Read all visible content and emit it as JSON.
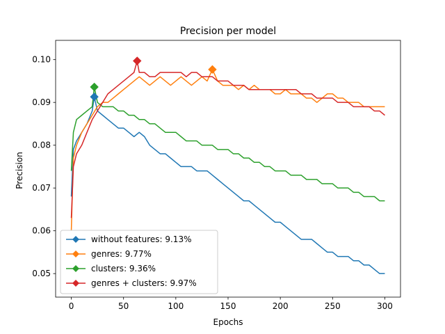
{
  "chart_data": {
    "type": "line",
    "title": "Precision per model",
    "xlabel": "Epochs",
    "ylabel": "Precision",
    "xlim": [
      -15,
      315
    ],
    "ylim": [
      0.0445,
      0.1045
    ],
    "xticks": [
      0,
      50,
      100,
      150,
      200,
      250,
      300
    ],
    "yticks": [
      0.05,
      0.06,
      0.07,
      0.08,
      0.09,
      0.1
    ],
    "ytick_labels": [
      "0.05",
      "0.06",
      "0.07",
      "0.08",
      "0.09",
      "0.10"
    ],
    "grid": false,
    "legend_position": "lower-left",
    "series": [
      {
        "name": "without features: 9.13%",
        "color": "#1f77b4",
        "points": [
          [
            0,
            0.068
          ],
          [
            2,
            0.079
          ],
          [
            5,
            0.081
          ],
          [
            10,
            0.083
          ],
          [
            15,
            0.085
          ],
          [
            20,
            0.088
          ],
          [
            22,
            0.0913
          ],
          [
            25,
            0.088
          ],
          [
            30,
            0.087
          ],
          [
            35,
            0.086
          ],
          [
            40,
            0.085
          ],
          [
            45,
            0.084
          ],
          [
            50,
            0.084
          ],
          [
            55,
            0.083
          ],
          [
            60,
            0.082
          ],
          [
            65,
            0.083
          ],
          [
            70,
            0.082
          ],
          [
            75,
            0.08
          ],
          [
            80,
            0.079
          ],
          [
            85,
            0.078
          ],
          [
            90,
            0.078
          ],
          [
            95,
            0.077
          ],
          [
            100,
            0.076
          ],
          [
            105,
            0.075
          ],
          [
            110,
            0.075
          ],
          [
            115,
            0.075
          ],
          [
            120,
            0.074
          ],
          [
            125,
            0.074
          ],
          [
            130,
            0.074
          ],
          [
            135,
            0.073
          ],
          [
            140,
            0.072
          ],
          [
            145,
            0.071
          ],
          [
            150,
            0.07
          ],
          [
            155,
            0.069
          ],
          [
            160,
            0.068
          ],
          [
            165,
            0.067
          ],
          [
            170,
            0.067
          ],
          [
            175,
            0.066
          ],
          [
            180,
            0.065
          ],
          [
            185,
            0.064
          ],
          [
            190,
            0.063
          ],
          [
            195,
            0.062
          ],
          [
            200,
            0.062
          ],
          [
            205,
            0.061
          ],
          [
            210,
            0.06
          ],
          [
            215,
            0.059
          ],
          [
            220,
            0.058
          ],
          [
            225,
            0.058
          ],
          [
            230,
            0.058
          ],
          [
            235,
            0.057
          ],
          [
            240,
            0.056
          ],
          [
            245,
            0.055
          ],
          [
            250,
            0.055
          ],
          [
            255,
            0.054
          ],
          [
            260,
            0.054
          ],
          [
            265,
            0.054
          ],
          [
            270,
            0.053
          ],
          [
            275,
            0.053
          ],
          [
            280,
            0.052
          ],
          [
            285,
            0.052
          ],
          [
            290,
            0.051
          ],
          [
            295,
            0.05
          ],
          [
            300,
            0.05
          ]
        ]
      },
      {
        "name": "genres: 9.77%",
        "color": "#ff7f0e",
        "points": [
          [
            0,
            0.06
          ],
          [
            2,
            0.077
          ],
          [
            5,
            0.08
          ],
          [
            10,
            0.083
          ],
          [
            15,
            0.085
          ],
          [
            20,
            0.087
          ],
          [
            25,
            0.089
          ],
          [
            30,
            0.09
          ],
          [
            35,
            0.09
          ],
          [
            40,
            0.091
          ],
          [
            45,
            0.092
          ],
          [
            50,
            0.093
          ],
          [
            55,
            0.094
          ],
          [
            60,
            0.095
          ],
          [
            65,
            0.096
          ],
          [
            70,
            0.095
          ],
          [
            75,
            0.094
          ],
          [
            80,
            0.095
          ],
          [
            85,
            0.096
          ],
          [
            90,
            0.095
          ],
          [
            95,
            0.094
          ],
          [
            100,
            0.095
          ],
          [
            105,
            0.096
          ],
          [
            110,
            0.095
          ],
          [
            115,
            0.094
          ],
          [
            120,
            0.095
          ],
          [
            125,
            0.096
          ],
          [
            130,
            0.095
          ],
          [
            135,
            0.0977
          ],
          [
            140,
            0.095
          ],
          [
            145,
            0.094
          ],
          [
            150,
            0.094
          ],
          [
            155,
            0.094
          ],
          [
            160,
            0.093
          ],
          [
            165,
            0.094
          ],
          [
            170,
            0.093
          ],
          [
            175,
            0.094
          ],
          [
            180,
            0.093
          ],
          [
            185,
            0.093
          ],
          [
            190,
            0.093
          ],
          [
            195,
            0.092
          ],
          [
            200,
            0.092
          ],
          [
            205,
            0.093
          ],
          [
            210,
            0.092
          ],
          [
            215,
            0.092
          ],
          [
            220,
            0.092
          ],
          [
            225,
            0.091
          ],
          [
            230,
            0.091
          ],
          [
            235,
            0.09
          ],
          [
            240,
            0.091
          ],
          [
            245,
            0.092
          ],
          [
            250,
            0.092
          ],
          [
            255,
            0.091
          ],
          [
            260,
            0.091
          ],
          [
            265,
            0.09
          ],
          [
            270,
            0.09
          ],
          [
            275,
            0.09
          ],
          [
            280,
            0.089
          ],
          [
            285,
            0.089
          ],
          [
            290,
            0.089
          ],
          [
            295,
            0.089
          ],
          [
            300,
            0.089
          ]
        ]
      },
      {
        "name": "clusters: 9.36%",
        "color": "#2ca02c",
        "points": [
          [
            0,
            0.074
          ],
          [
            2,
            0.083
          ],
          [
            5,
            0.086
          ],
          [
            10,
            0.087
          ],
          [
            15,
            0.088
          ],
          [
            20,
            0.089
          ],
          [
            22,
            0.0936
          ],
          [
            25,
            0.09
          ],
          [
            30,
            0.089
          ],
          [
            35,
            0.089
          ],
          [
            40,
            0.089
          ],
          [
            45,
            0.088
          ],
          [
            50,
            0.088
          ],
          [
            55,
            0.087
          ],
          [
            60,
            0.087
          ],
          [
            65,
            0.086
          ],
          [
            70,
            0.086
          ],
          [
            75,
            0.085
          ],
          [
            80,
            0.085
          ],
          [
            85,
            0.084
          ],
          [
            90,
            0.083
          ],
          [
            95,
            0.083
          ],
          [
            100,
            0.083
          ],
          [
            105,
            0.082
          ],
          [
            110,
            0.081
          ],
          [
            115,
            0.081
          ],
          [
            120,
            0.081
          ],
          [
            125,
            0.08
          ],
          [
            130,
            0.08
          ],
          [
            135,
            0.08
          ],
          [
            140,
            0.079
          ],
          [
            145,
            0.079
          ],
          [
            150,
            0.079
          ],
          [
            155,
            0.078
          ],
          [
            160,
            0.078
          ],
          [
            165,
            0.077
          ],
          [
            170,
            0.077
          ],
          [
            175,
            0.076
          ],
          [
            180,
            0.076
          ],
          [
            185,
            0.075
          ],
          [
            190,
            0.075
          ],
          [
            195,
            0.074
          ],
          [
            200,
            0.074
          ],
          [
            205,
            0.074
          ],
          [
            210,
            0.073
          ],
          [
            215,
            0.073
          ],
          [
            220,
            0.073
          ],
          [
            225,
            0.072
          ],
          [
            230,
            0.072
          ],
          [
            235,
            0.072
          ],
          [
            240,
            0.071
          ],
          [
            245,
            0.071
          ],
          [
            250,
            0.071
          ],
          [
            255,
            0.07
          ],
          [
            260,
            0.07
          ],
          [
            265,
            0.07
          ],
          [
            270,
            0.069
          ],
          [
            275,
            0.069
          ],
          [
            280,
            0.068
          ],
          [
            285,
            0.068
          ],
          [
            290,
            0.068
          ],
          [
            295,
            0.067
          ],
          [
            300,
            0.067
          ]
        ]
      },
      {
        "name": "genres + clusters: 9.97%",
        "color": "#d62728",
        "points": [
          [
            0,
            0.063
          ],
          [
            2,
            0.075
          ],
          [
            5,
            0.078
          ],
          [
            10,
            0.08
          ],
          [
            15,
            0.083
          ],
          [
            20,
            0.086
          ],
          [
            25,
            0.088
          ],
          [
            30,
            0.09
          ],
          [
            35,
            0.092
          ],
          [
            40,
            0.093
          ],
          [
            45,
            0.094
          ],
          [
            50,
            0.095
          ],
          [
            55,
            0.096
          ],
          [
            60,
            0.097
          ],
          [
            63,
            0.0997
          ],
          [
            65,
            0.097
          ],
          [
            70,
            0.097
          ],
          [
            75,
            0.096
          ],
          [
            80,
            0.096
          ],
          [
            85,
            0.097
          ],
          [
            90,
            0.097
          ],
          [
            95,
            0.097
          ],
          [
            100,
            0.097
          ],
          [
            105,
            0.097
          ],
          [
            110,
            0.096
          ],
          [
            115,
            0.097
          ],
          [
            120,
            0.097
          ],
          [
            125,
            0.096
          ],
          [
            130,
            0.096
          ],
          [
            135,
            0.096
          ],
          [
            140,
            0.095
          ],
          [
            145,
            0.095
          ],
          [
            150,
            0.095
          ],
          [
            155,
            0.094
          ],
          [
            160,
            0.094
          ],
          [
            165,
            0.094
          ],
          [
            170,
            0.093
          ],
          [
            175,
            0.093
          ],
          [
            180,
            0.093
          ],
          [
            185,
            0.093
          ],
          [
            190,
            0.093
          ],
          [
            195,
            0.093
          ],
          [
            200,
            0.093
          ],
          [
            205,
            0.093
          ],
          [
            210,
            0.093
          ],
          [
            215,
            0.093
          ],
          [
            220,
            0.092
          ],
          [
            225,
            0.092
          ],
          [
            230,
            0.092
          ],
          [
            235,
            0.091
          ],
          [
            240,
            0.091
          ],
          [
            245,
            0.091
          ],
          [
            250,
            0.091
          ],
          [
            255,
            0.09
          ],
          [
            260,
            0.09
          ],
          [
            265,
            0.09
          ],
          [
            270,
            0.089
          ],
          [
            275,
            0.089
          ],
          [
            280,
            0.089
          ],
          [
            285,
            0.089
          ],
          [
            290,
            0.088
          ],
          [
            295,
            0.088
          ],
          [
            300,
            0.087
          ]
        ]
      }
    ],
    "best_markers": [
      {
        "series_index": 0,
        "x": 22,
        "y": 0.0913
      },
      {
        "series_index": 1,
        "x": 135,
        "y": 0.0977
      },
      {
        "series_index": 2,
        "x": 22,
        "y": 0.0936
      },
      {
        "series_index": 3,
        "x": 63,
        "y": 0.0997
      }
    ]
  }
}
